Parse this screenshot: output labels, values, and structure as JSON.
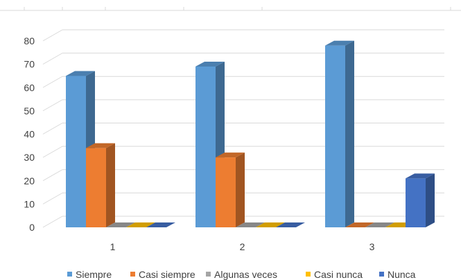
{
  "chart_data": {
    "type": "bar",
    "categories": [
      "1",
      "2",
      "3"
    ],
    "series": [
      {
        "name": "Siempre",
        "values": [
          65,
          69,
          78
        ],
        "color": "#5B9BD5"
      },
      {
        "name": "Casi siempre",
        "values": [
          34,
          30,
          0
        ],
        "color": "#ED7D31"
      },
      {
        "name": "Algunas veces",
        "values": [
          0,
          0,
          0
        ],
        "color": "#A5A5A5"
      },
      {
        "name": "Casi nunca",
        "values": [
          0,
          0,
          0
        ],
        "color": "#FFC000"
      },
      {
        "name": "Nunca",
        "values": [
          0,
          0,
          21
        ],
        "color": "#4472C4"
      }
    ],
    "y_ticks": [
      "0",
      "10",
      "20",
      "30",
      "40",
      "50",
      "60",
      "70",
      "80"
    ],
    "ylim": [
      0,
      80
    ],
    "grid": true,
    "legend_position": "bottom",
    "style": "3d-clustered-column"
  }
}
